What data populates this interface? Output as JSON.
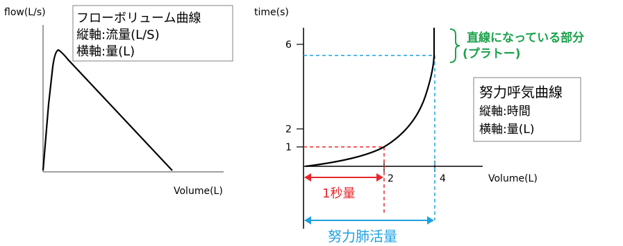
{
  "flow_chart": {
    "y_axis_label": "flow(L/s)",
    "x_axis_label": "Volume(L)",
    "box": {
      "title": "フローボリューム曲線",
      "line1": "縦軸:流量(L/S)",
      "line2": "横軸:量(L)"
    }
  },
  "effort_chart": {
    "y_axis_label": "time(s)",
    "x_axis_label": "Volume(L)",
    "y_ticks": [
      "6",
      "2",
      "1"
    ],
    "x_ticks": [
      "2",
      "4"
    ],
    "plateau_label_line1": "直線になっている部分",
    "plateau_label_line2": "(プラトー)",
    "one_second_label": "1秒量",
    "vital_capacity_label": "努力肺活量",
    "box": {
      "title": "努力呼気曲線",
      "line1": "縦軸:時間",
      "line2": "横軸:量(L)"
    }
  },
  "colors": {
    "red": "#e8262b",
    "blue": "#1ea0e0",
    "green": "#1aa24a",
    "black": "#000000",
    "gray": "#808080"
  }
}
